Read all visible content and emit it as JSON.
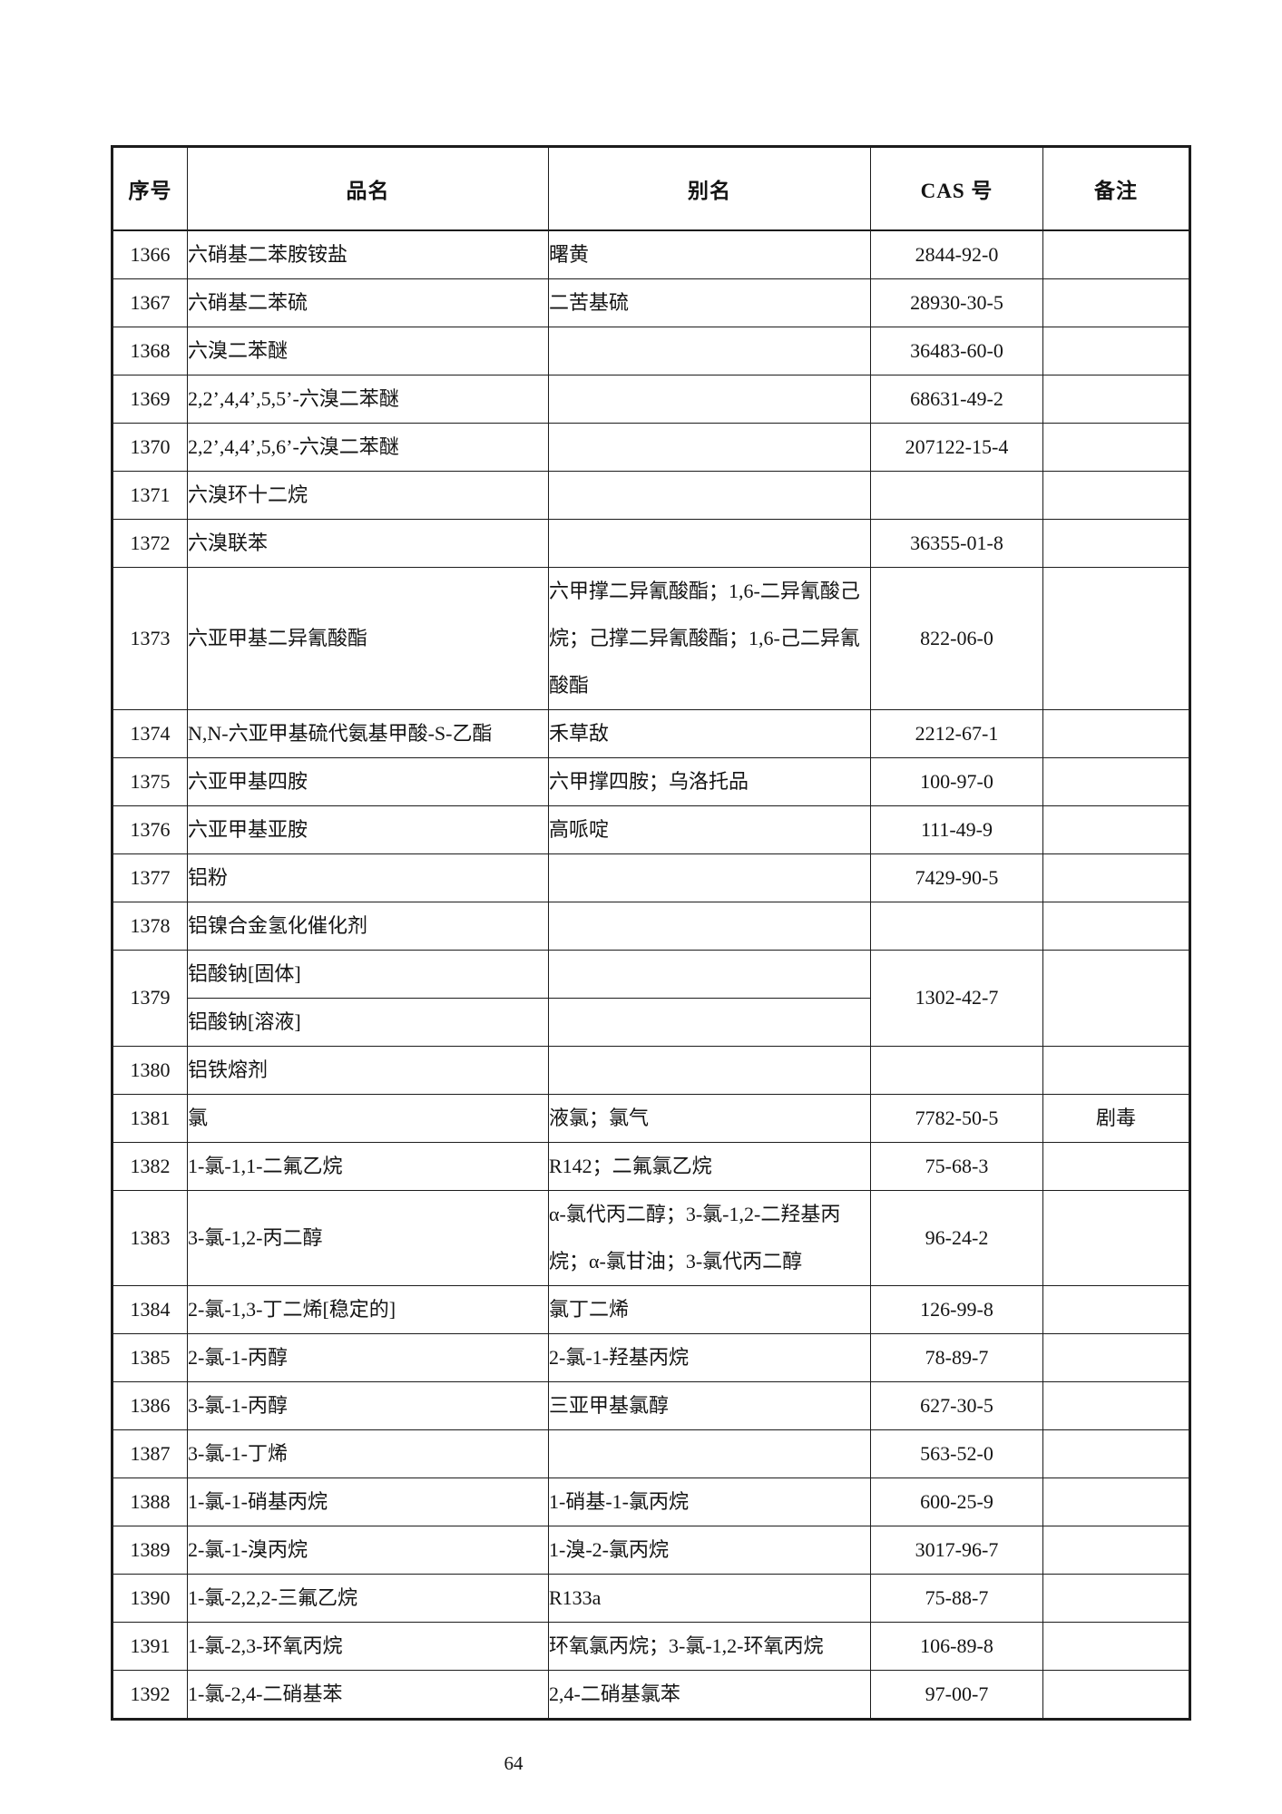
{
  "page": {
    "number": "64"
  },
  "table": {
    "headers": [
      "序号",
      "品名",
      "别名",
      "CAS 号",
      "备注"
    ],
    "rows": [
      {
        "id": "1366",
        "name": "六硝基二苯胺铵盐",
        "alias": "曙黄",
        "cas": "2844-92-0",
        "note": ""
      },
      {
        "id": "1367",
        "name": "六硝基二苯硫",
        "alias": "二苦基硫",
        "cas": "28930-30-5",
        "note": ""
      },
      {
        "id": "1368",
        "name": "六溴二苯醚",
        "alias": "",
        "cas": "36483-60-0",
        "note": ""
      },
      {
        "id": "1369",
        "name": "2,2’,4,4’,5,5’-六溴二苯醚",
        "alias": "",
        "cas": "68631-49-2",
        "note": ""
      },
      {
        "id": "1370",
        "name": "2,2’,4,4’,5,6’-六溴二苯醚",
        "alias": "",
        "cas": "207122-15-4",
        "note": ""
      },
      {
        "id": "1371",
        "name": "六溴环十二烷",
        "alias": "",
        "cas": "",
        "note": ""
      },
      {
        "id": "1372",
        "name": "六溴联苯",
        "alias": "",
        "cas": "36355-01-8",
        "note": ""
      },
      {
        "id": "1373",
        "name": "六亚甲基二异氰酸酯",
        "alias": "六甲撑二异氰酸酯；1,6-二异氰酸己烷；己撑二异氰酸酯；1,6-己二异氰酸酯",
        "cas": "822-06-0",
        "note": ""
      },
      {
        "id": "1374",
        "name": "N,N-六亚甲基硫代氨基甲酸-S-乙酯",
        "alias": "禾草敌",
        "cas": "2212-67-1",
        "note": ""
      },
      {
        "id": "1375",
        "name": "六亚甲基四胺",
        "alias": "六甲撑四胺；乌洛托品",
        "cas": "100-97-0",
        "note": ""
      },
      {
        "id": "1376",
        "name": "六亚甲基亚胺",
        "alias": "高哌啶",
        "cas": "111-49-9",
        "note": ""
      },
      {
        "id": "1377",
        "name": "铝粉",
        "alias": "",
        "cas": "7429-90-5",
        "note": ""
      },
      {
        "id": "1378",
        "name": "铝镍合金氢化催化剂",
        "alias": "",
        "cas": "",
        "note": ""
      },
      {
        "id": "1379",
        "name_rows": [
          "铝酸钠[固体]",
          "铝酸钠[溶液]"
        ],
        "alias_rows": [
          "",
          ""
        ],
        "cas": "1302-42-7",
        "note": ""
      },
      {
        "id": "1380",
        "name": "铝铁熔剂",
        "alias": "",
        "cas": "",
        "note": ""
      },
      {
        "id": "1381",
        "name": "氯",
        "alias": "液氯；氯气",
        "cas": "7782-50-5",
        "note": "剧毒"
      },
      {
        "id": "1382",
        "name": "1-氯-1,1-二氟乙烷",
        "alias": "R142；二氟氯乙烷",
        "cas": "75-68-3",
        "note": ""
      },
      {
        "id": "1383",
        "name": "3-氯-1,2-丙二醇",
        "alias": "α-氯代丙二醇；3-氯-1,2-二羟基丙烷；α-氯甘油；3-氯代丙二醇",
        "cas": "96-24-2",
        "note": ""
      },
      {
        "id": "1384",
        "name": "2-氯-1,3-丁二烯[稳定的]",
        "alias": "氯丁二烯",
        "cas": "126-99-8",
        "note": ""
      },
      {
        "id": "1385",
        "name": "2-氯-1-丙醇",
        "alias": "2-氯-1-羟基丙烷",
        "cas": "78-89-7",
        "note": ""
      },
      {
        "id": "1386",
        "name": "3-氯-1-丙醇",
        "alias": "三亚甲基氯醇",
        "cas": "627-30-5",
        "note": ""
      },
      {
        "id": "1387",
        "name": "3-氯-1-丁烯",
        "alias": "",
        "cas": "563-52-0",
        "note": ""
      },
      {
        "id": "1388",
        "name": "1-氯-1-硝基丙烷",
        "alias": "1-硝基-1-氯丙烷",
        "cas": "600-25-9",
        "note": ""
      },
      {
        "id": "1389",
        "name": "2-氯-1-溴丙烷",
        "alias": "1-溴-2-氯丙烷",
        "cas": "3017-96-7",
        "note": ""
      },
      {
        "id": "1390",
        "name": "1-氯-2,2,2-三氟乙烷",
        "alias": "R133a",
        "cas": "75-88-7",
        "note": ""
      },
      {
        "id": "1391",
        "name": "1-氯-2,3-环氧丙烷",
        "alias": "环氧氯丙烷；3-氯-1,2-环氧丙烷",
        "cas": "106-89-8",
        "note": ""
      },
      {
        "id": "1392",
        "name": "1-氯-2,4-二硝基苯",
        "alias": "2,4-二硝基氯苯",
        "cas": "97-00-7",
        "note": ""
      }
    ]
  }
}
